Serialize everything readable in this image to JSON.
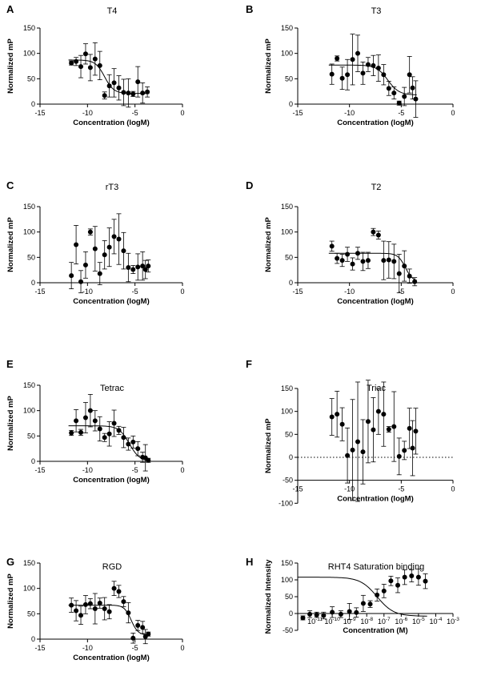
{
  "chart_data": [
    {
      "panel": "A",
      "type": "scatter",
      "title": "T4",
      "xlabel": "Concentration (logM)",
      "ylabel": "Normalized mP",
      "xlim": [
        -15,
        0
      ],
      "ylim": [
        -5,
        150
      ],
      "xticks": [
        -15,
        -10,
        -5,
        0
      ],
      "yticks": [
        0,
        50,
        100,
        150
      ],
      "xtick_labels": [
        "-15",
        "-10",
        "-5",
        "0"
      ],
      "ytick_labels": [
        "0",
        "50",
        "100",
        "150"
      ],
      "zero_line": true,
      "points": [
        {
          "x": -11.7,
          "y": 81,
          "err": 4
        },
        {
          "x": -11.2,
          "y": 84,
          "err": 8
        },
        {
          "x": -10.7,
          "y": 74,
          "err": 22
        },
        {
          "x": -10.2,
          "y": 99,
          "err": 20
        },
        {
          "x": -9.7,
          "y": 72,
          "err": 26
        },
        {
          "x": -9.2,
          "y": 89,
          "err": 32
        },
        {
          "x": -8.7,
          "y": 76,
          "err": 28
        },
        {
          "x": -8.2,
          "y": 17,
          "err": 7
        },
        {
          "x": -7.7,
          "y": 36,
          "err": 22
        },
        {
          "x": -7.2,
          "y": 42,
          "err": 28
        },
        {
          "x": -6.7,
          "y": 32,
          "err": 24
        },
        {
          "x": -6.2,
          "y": 23,
          "err": 26
        },
        {
          "x": -5.7,
          "y": 22,
          "err": 28
        },
        {
          "x": -5.2,
          "y": 20,
          "err": 5
        },
        {
          "x": -4.7,
          "y": 44,
          "err": 30
        },
        {
          "x": -4.2,
          "y": 22,
          "err": 20
        },
        {
          "x": -3.7,
          "y": 24,
          "err": 10
        }
      ],
      "fit": {
        "top": 87,
        "bottom": 21,
        "logec50": -8.2,
        "hill": 0.9,
        "xmin": -12,
        "xmax": -3.5
      }
    },
    {
      "panel": "B",
      "type": "scatter",
      "title": "T3",
      "xlabel": "Concentration (logM)",
      "ylabel": "Normalized mP",
      "xlim": [
        -15,
        0
      ],
      "ylim": [
        -5,
        150
      ],
      "xticks": [
        -15,
        -10,
        -5,
        0
      ],
      "yticks": [
        0,
        50,
        100,
        150
      ],
      "xtick_labels": [
        "-15",
        "-10",
        "-5",
        "0"
      ],
      "ytick_labels": [
        "0",
        "50",
        "100",
        "150"
      ],
      "zero_line": true,
      "points": [
        {
          "x": -11.7,
          "y": 59,
          "err": 20
        },
        {
          "x": -11.2,
          "y": 90,
          "err": 5
        },
        {
          "x": -10.7,
          "y": 51,
          "err": 22
        },
        {
          "x": -10.2,
          "y": 58,
          "err": 30
        },
        {
          "x": -9.7,
          "y": 88,
          "err": 50
        },
        {
          "x": -9.2,
          "y": 100,
          "err": 36
        },
        {
          "x": -8.7,
          "y": 61,
          "err": 22
        },
        {
          "x": -8.2,
          "y": 78,
          "err": 14
        },
        {
          "x": -7.7,
          "y": 76,
          "err": 20
        },
        {
          "x": -7.2,
          "y": 71,
          "err": 26
        },
        {
          "x": -6.7,
          "y": 58,
          "err": 20
        },
        {
          "x": -6.2,
          "y": 31,
          "err": 14
        },
        {
          "x": -5.7,
          "y": 22,
          "err": 12
        },
        {
          "x": -5.2,
          "y": 2,
          "err": 4
        },
        {
          "x": -4.7,
          "y": 15,
          "err": 18
        },
        {
          "x": -4.2,
          "y": 58,
          "err": 36
        },
        {
          "x": -3.9,
          "y": 32,
          "err": 22
        },
        {
          "x": -3.6,
          "y": 10,
          "err": 36
        }
      ],
      "fit": {
        "top": 77,
        "bottom": 18,
        "logec50": -6.3,
        "hill": 0.8,
        "xmin": -12,
        "xmax": -3.5
      }
    },
    {
      "panel": "C",
      "type": "scatter",
      "title": "rT3",
      "xlabel": "Concentration (logM)",
      "ylabel": "Normalized mP",
      "xlim": [
        -15,
        0
      ],
      "ylim": [
        -5,
        150
      ],
      "xticks": [
        -15,
        -10,
        -5,
        0
      ],
      "yticks": [
        0,
        50,
        100,
        150
      ],
      "xtick_labels": [
        "-15",
        "-10",
        "-5",
        "0"
      ],
      "ytick_labels": [
        "0",
        "50",
        "100",
        "150"
      ],
      "zero_line": true,
      "points": [
        {
          "x": -11.7,
          "y": 14,
          "err": 26
        },
        {
          "x": -11.2,
          "y": 75,
          "err": 38
        },
        {
          "x": -10.7,
          "y": 2,
          "err": 22
        },
        {
          "x": -10.2,
          "y": 35,
          "err": 26
        },
        {
          "x": -9.7,
          "y": 100,
          "err": 6
        },
        {
          "x": -9.2,
          "y": 67,
          "err": 44
        },
        {
          "x": -8.7,
          "y": 18,
          "err": 22
        },
        {
          "x": -8.2,
          "y": 55,
          "err": 28
        },
        {
          "x": -7.7,
          "y": 70,
          "err": 38
        },
        {
          "x": -7.2,
          "y": 91,
          "err": 34
        },
        {
          "x": -6.7,
          "y": 86,
          "err": 50
        },
        {
          "x": -6.2,
          "y": 63,
          "err": 36
        },
        {
          "x": -5.7,
          "y": 30,
          "err": 28
        },
        {
          "x": -5.2,
          "y": 26,
          "err": 8
        },
        {
          "x": -4.7,
          "y": 31,
          "err": 26
        },
        {
          "x": -4.2,
          "y": 33,
          "err": 28
        },
        {
          "x": -3.9,
          "y": 26,
          "err": 18
        },
        {
          "x": -3.6,
          "y": 33,
          "err": 12
        }
      ],
      "fit": null
    },
    {
      "panel": "D",
      "type": "scatter",
      "title": "T2",
      "xlabel": "Concentration (logM)",
      "ylabel": "Normalized mP",
      "xlim": [
        -15,
        0
      ],
      "ylim": [
        -5,
        150
      ],
      "xticks": [
        -15,
        -10,
        -5,
        0
      ],
      "yticks": [
        0,
        50,
        100,
        150
      ],
      "xtick_labels": [
        "-15",
        "-10",
        "-5",
        "0"
      ],
      "ytick_labels": [
        "0",
        "50",
        "100",
        "150"
      ],
      "zero_line": true,
      "points": [
        {
          "x": -11.7,
          "y": 72,
          "err": 10
        },
        {
          "x": -11.2,
          "y": 48,
          "err": 10
        },
        {
          "x": -10.7,
          "y": 44,
          "err": 12
        },
        {
          "x": -10.2,
          "y": 56,
          "err": 14
        },
        {
          "x": -9.7,
          "y": 37,
          "err": 12
        },
        {
          "x": -9.2,
          "y": 58,
          "err": 12
        },
        {
          "x": -8.7,
          "y": 42,
          "err": 18
        },
        {
          "x": -8.2,
          "y": 44,
          "err": 16
        },
        {
          "x": -7.7,
          "y": 100,
          "err": 7
        },
        {
          "x": -7.2,
          "y": 94,
          "err": 8
        },
        {
          "x": -6.7,
          "y": 44,
          "err": 38
        },
        {
          "x": -6.2,
          "y": 45,
          "err": 36
        },
        {
          "x": -5.7,
          "y": 42,
          "err": 34
        },
        {
          "x": -5.2,
          "y": 18,
          "err": 38
        },
        {
          "x": -4.7,
          "y": 33,
          "err": 30
        },
        {
          "x": -4.2,
          "y": 13,
          "err": 14
        },
        {
          "x": -3.7,
          "y": 2,
          "err": 8
        }
      ],
      "fit": {
        "top": 58,
        "bottom": 2,
        "logec50": -4.6,
        "hill": 1.2,
        "xmin": -12,
        "xmax": -3.5
      }
    },
    {
      "panel": "E",
      "type": "scatter",
      "title": "Tetrac",
      "xlabel": "Concentration (logM)",
      "ylabel": "Normalized mP",
      "xlim": [
        -15,
        0
      ],
      "ylim": [
        -5,
        150
      ],
      "xticks": [
        -15,
        -10,
        -5,
        0
      ],
      "yticks": [
        0,
        50,
        100,
        150
      ],
      "xtick_labels": [
        "-15",
        "-10",
        "-5",
        "0"
      ],
      "ytick_labels": [
        "0",
        "50",
        "100",
        "150"
      ],
      "zero_line": true,
      "points": [
        {
          "x": -11.7,
          "y": 56,
          "err": 5
        },
        {
          "x": -11.2,
          "y": 80,
          "err": 22
        },
        {
          "x": -10.7,
          "y": 57,
          "err": 6
        },
        {
          "x": -10.2,
          "y": 86,
          "err": 30
        },
        {
          "x": -9.7,
          "y": 100,
          "err": 32
        },
        {
          "x": -9.2,
          "y": 80,
          "err": 20
        },
        {
          "x": -8.7,
          "y": 64,
          "err": 24
        },
        {
          "x": -8.2,
          "y": 47,
          "err": 8
        },
        {
          "x": -7.7,
          "y": 54,
          "err": 24
        },
        {
          "x": -7.2,
          "y": 75,
          "err": 26
        },
        {
          "x": -6.7,
          "y": 61,
          "err": 8
        },
        {
          "x": -6.2,
          "y": 47,
          "err": 20
        },
        {
          "x": -5.7,
          "y": 34,
          "err": 12
        },
        {
          "x": -5.2,
          "y": 38,
          "err": 12
        },
        {
          "x": -4.7,
          "y": 25,
          "err": 14
        },
        {
          "x": -4.2,
          "y": 8,
          "err": 10
        },
        {
          "x": -3.9,
          "y": 7,
          "err": 26
        },
        {
          "x": -3.6,
          "y": 2,
          "err": 4
        }
      ],
      "fit": {
        "top": 70,
        "bottom": 0,
        "logec50": -5.6,
        "hill": 0.8,
        "xmin": -12,
        "xmax": -3.5
      }
    },
    {
      "panel": "F",
      "type": "scatter",
      "title": "Triac",
      "xlabel": "Concentration (logM)",
      "ylabel": "Normalized mP",
      "xlim": [
        -15,
        0
      ],
      "ylim": [
        -100,
        150
      ],
      "xticks": [
        -15,
        -10,
        -5,
        0
      ],
      "yticks": [
        -100,
        -50,
        0,
        50,
        100,
        150
      ],
      "xtick_labels": [
        "-15",
        "-10",
        "-5",
        "0"
      ],
      "ytick_labels": [
        "-100",
        "-50",
        "0",
        "50",
        "100",
        "150"
      ],
      "zero_line": true,
      "xaxis_at": -50,
      "points": [
        {
          "x": -11.7,
          "y": 88,
          "err": 40
        },
        {
          "x": -11.2,
          "y": 94,
          "err": 50
        },
        {
          "x": -10.7,
          "y": 72,
          "err": 36
        },
        {
          "x": -10.2,
          "y": 4,
          "err": 60
        },
        {
          "x": -9.7,
          "y": 16,
          "err": 110
        },
        {
          "x": -9.2,
          "y": 34,
          "err": 130
        },
        {
          "x": -8.7,
          "y": 12,
          "err": 70
        },
        {
          "x": -8.2,
          "y": 78,
          "err": 90
        },
        {
          "x": -7.7,
          "y": 60,
          "err": 70
        },
        {
          "x": -7.2,
          "y": 100,
          "err": 50
        },
        {
          "x": -6.7,
          "y": 94,
          "err": 70
        },
        {
          "x": -6.2,
          "y": 61,
          "err": 6
        },
        {
          "x": -5.7,
          "y": 67,
          "err": 76
        },
        {
          "x": -5.2,
          "y": 2,
          "err": 40
        },
        {
          "x": -4.7,
          "y": 15,
          "err": 20
        },
        {
          "x": -4.2,
          "y": 63,
          "err": 44
        },
        {
          "x": -3.9,
          "y": 20,
          "err": 60
        },
        {
          "x": -3.6,
          "y": 57,
          "err": 50
        }
      ],
      "fit": null
    },
    {
      "panel": "G",
      "type": "scatter",
      "title": "RGD",
      "xlabel": "Concentration (logM)",
      "ylabel": "Normalized mP",
      "xlim": [
        -15,
        0
      ],
      "ylim": [
        -5,
        150
      ],
      "xticks": [
        -15,
        -10,
        -5,
        0
      ],
      "yticks": [
        0,
        50,
        100,
        150
      ],
      "xtick_labels": [
        "-15",
        "-10",
        "-5",
        "0"
      ],
      "ytick_labels": [
        "0",
        "50",
        "100",
        "150"
      ],
      "zero_line": true,
      "points": [
        {
          "x": -11.7,
          "y": 67,
          "err": 14
        },
        {
          "x": -11.2,
          "y": 56,
          "err": 20
        },
        {
          "x": -10.7,
          "y": 47,
          "err": 18
        },
        {
          "x": -10.2,
          "y": 68,
          "err": 18
        },
        {
          "x": -9.7,
          "y": 70,
          "err": 10
        },
        {
          "x": -9.2,
          "y": 60,
          "err": 30
        },
        {
          "x": -8.7,
          "y": 71,
          "err": 10
        },
        {
          "x": -8.2,
          "y": 60,
          "err": 22
        },
        {
          "x": -7.7,
          "y": 54,
          "err": 14
        },
        {
          "x": -7.2,
          "y": 100,
          "err": 14
        },
        {
          "x": -6.7,
          "y": 94,
          "err": 12
        },
        {
          "x": -6.2,
          "y": 74,
          "err": 10
        },
        {
          "x": -5.7,
          "y": 52,
          "err": 20
        },
        {
          "x": -5.2,
          "y": 2,
          "err": 10
        },
        {
          "x": -4.7,
          "y": 27,
          "err": 10
        },
        {
          "x": -4.2,
          "y": 23,
          "err": 12
        },
        {
          "x": -3.9,
          "y": 5,
          "err": 14
        },
        {
          "x": -3.6,
          "y": 10,
          "err": 4
        }
      ],
      "fit": {
        "top": 67,
        "bottom": 8,
        "logec50": -5.4,
        "hill": 1.2,
        "xmin": -12,
        "xmax": -3.5
      }
    },
    {
      "panel": "H",
      "type": "scatter",
      "title": "RHT4 Saturation binding",
      "xlabel": "Concentration (M)",
      "ylabel": "Normalized  Intensity",
      "xscale": "log",
      "xlim": [
        -12,
        -3
      ],
      "ylim": [
        -50,
        150
      ],
      "xticks": [
        -11,
        -10,
        -9,
        -8,
        -7,
        -6,
        -5,
        -4,
        -3
      ],
      "yticks": [
        -50,
        0,
        50,
        100,
        150
      ],
      "xtick_labels": [
        "-11",
        "-10",
        "-9",
        "-8",
        "-7",
        "-6",
        "-5",
        "-4",
        "-3"
      ],
      "ytick_labels": [
        "-50",
        "0",
        "50",
        "100",
        "150"
      ],
      "xtick_base": "10",
      "zero_line": false,
      "xaxis_at": 0,
      "points": [
        {
          "x": -11.7,
          "y": -13,
          "err": 6
        },
        {
          "x": -11.3,
          "y": -2,
          "err": 10
        },
        {
          "x": -10.9,
          "y": -4,
          "err": 8
        },
        {
          "x": -10.5,
          "y": -6,
          "err": 10
        },
        {
          "x": -10.0,
          "y": 4,
          "err": 16
        },
        {
          "x": -9.5,
          "y": -2,
          "err": 10
        },
        {
          "x": -9.0,
          "y": 6,
          "err": 24
        },
        {
          "x": -8.6,
          "y": 3,
          "err": 14
        },
        {
          "x": -8.2,
          "y": 30,
          "err": 24
        },
        {
          "x": -7.8,
          "y": 28,
          "err": 10
        },
        {
          "x": -7.4,
          "y": 55,
          "err": 18
        },
        {
          "x": -7.0,
          "y": 67,
          "err": 20
        },
        {
          "x": -6.6,
          "y": 97,
          "err": 14
        },
        {
          "x": -6.2,
          "y": 84,
          "err": 22
        },
        {
          "x": -5.8,
          "y": 108,
          "err": 22
        },
        {
          "x": -5.4,
          "y": 112,
          "err": 18
        },
        {
          "x": -5.0,
          "y": 108,
          "err": 24
        },
        {
          "x": -4.6,
          "y": 96,
          "err": 22
        }
      ],
      "fit": {
        "top": 108,
        "bottom": -8,
        "logec50": -7.4,
        "hill": 0.9,
        "xmin": -12,
        "xmax": -4.5
      }
    }
  ]
}
